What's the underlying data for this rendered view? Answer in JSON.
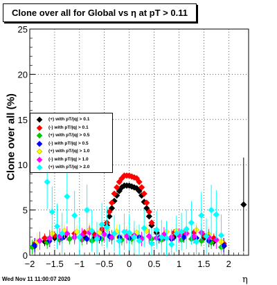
{
  "title": "Clone  over all for Global vs  η at pT > 0.11",
  "ylabel": "Clone  over all (%)",
  "xlabel": "η",
  "timestamp": "Wed Nov 11 11:00:07 2020",
  "chart_data": {
    "type": "scatter",
    "title": "Clone  over all for Global vs  η at pT > 0.11",
    "xlabel": "η",
    "ylabel": "Clone  over all (%)",
    "xlim": [
      -2.0,
      2.4
    ],
    "ylim": [
      0,
      25
    ],
    "x_ticks": [
      "−2",
      "−1.5",
      "−1",
      "−0.5",
      "0",
      "0.5",
      "1",
      "1.5",
      "2"
    ],
    "y_ticks": [
      "0",
      "5",
      "10",
      "15",
      "20",
      "25"
    ],
    "grid": true,
    "legend_position": "middle-left",
    "series": [
      {
        "name": "(+) with pT/|q| > 0.1",
        "color": "#000000",
        "x": [
          -1.9,
          -1.7,
          -1.5,
          -1.3,
          -1.1,
          -0.9,
          -0.7,
          -0.55,
          -0.45,
          -0.4,
          -0.35,
          -0.3,
          -0.25,
          -0.2,
          -0.15,
          -0.1,
          -0.05,
          0.0,
          0.05,
          0.1,
          0.15,
          0.2,
          0.25,
          0.3,
          0.35,
          0.4,
          0.45,
          0.55,
          0.7,
          0.9,
          1.1,
          1.3,
          1.5,
          1.7,
          1.9,
          2.3
        ],
        "y": [
          1.0,
          1.5,
          1.9,
          2.1,
          2.0,
          2.0,
          1.9,
          2.6,
          3.3,
          4.3,
          5.2,
          6.0,
          6.6,
          7.1,
          7.5,
          7.7,
          7.7,
          7.7,
          7.6,
          7.5,
          7.4,
          7.1,
          6.6,
          5.9,
          5.2,
          4.3,
          3.3,
          2.5,
          1.9,
          2.0,
          2.0,
          2.0,
          1.9,
          1.5,
          1.0,
          5.6
        ],
        "yerr": [
          0.6,
          0.5,
          0.4,
          0.4,
          0.4,
          0.4,
          0.4,
          0.4,
          0.3,
          0.3,
          0.3,
          0.3,
          0.3,
          0.3,
          0.3,
          0.3,
          0.3,
          0.3,
          0.3,
          0.3,
          0.3,
          0.3,
          0.3,
          0.3,
          0.3,
          0.3,
          0.3,
          0.4,
          0.4,
          0.4,
          0.4,
          0.4,
          0.4,
          0.5,
          0.6,
          5.2
        ]
      },
      {
        "name": "(-) with pT/|q| > 0.1",
        "color": "#ff0000",
        "x": [
          -1.9,
          -1.7,
          -1.5,
          -1.3,
          -1.1,
          -0.9,
          -0.7,
          -0.55,
          -0.45,
          -0.4,
          -0.35,
          -0.3,
          -0.25,
          -0.2,
          -0.15,
          -0.1,
          -0.05,
          0.0,
          0.05,
          0.1,
          0.15,
          0.2,
          0.25,
          0.3,
          0.35,
          0.4,
          0.45,
          0.55,
          0.7,
          0.9,
          1.1,
          1.3,
          1.5,
          1.7,
          1.9
        ],
        "y": [
          1.3,
          1.9,
          2.2,
          2.5,
          2.4,
          2.5,
          2.3,
          2.9,
          3.6,
          4.8,
          5.8,
          6.8,
          7.5,
          8.1,
          8.5,
          8.8,
          8.8,
          8.8,
          8.7,
          8.6,
          8.5,
          8.1,
          7.5,
          6.8,
          5.8,
          4.8,
          3.6,
          2.8,
          2.3,
          2.5,
          2.4,
          2.5,
          2.2,
          1.9,
          1.3
        ],
        "yerr": [
          0.6,
          0.5,
          0.4,
          0.4,
          0.4,
          0.4,
          0.4,
          0.4,
          0.3,
          0.3,
          0.3,
          0.3,
          0.3,
          0.3,
          0.3,
          0.3,
          0.3,
          0.3,
          0.3,
          0.3,
          0.3,
          0.3,
          0.3,
          0.3,
          0.3,
          0.3,
          0.3,
          0.4,
          0.4,
          0.4,
          0.4,
          0.4,
          0.4,
          0.5,
          0.6
        ]
      },
      {
        "name": "(+) with pT/|q| > 0.5",
        "color": "#00cc00",
        "x": [
          -1.95,
          -1.65,
          -1.4,
          -1.2,
          -0.95,
          -0.75,
          -0.55,
          -0.35,
          -0.15,
          0.05,
          0.25,
          0.45,
          0.65,
          0.85,
          1.05,
          1.25,
          1.45,
          1.65,
          1.85
        ],
        "y": [
          0.9,
          1.4,
          1.7,
          1.8,
          1.7,
          1.6,
          1.8,
          1.9,
          1.7,
          1.8,
          1.9,
          1.8,
          1.7,
          1.8,
          1.7,
          1.8,
          1.6,
          1.4,
          0.9
        ],
        "yerr": [
          0.8,
          0.7,
          0.6,
          0.6,
          0.6,
          0.6,
          0.6,
          0.6,
          0.6,
          0.6,
          0.6,
          0.6,
          0.6,
          0.6,
          0.6,
          0.6,
          0.6,
          0.7,
          0.8
        ]
      },
      {
        "name": "(-) with pT/|q| > 0.5",
        "color": "#0000ff",
        "x": [
          -1.9,
          -1.6,
          -1.35,
          -1.1,
          -0.85,
          -0.6,
          -0.4,
          -0.2,
          0.0,
          0.2,
          0.4,
          0.6,
          0.85,
          1.1,
          1.35,
          1.6,
          1.9
        ],
        "y": [
          1.1,
          1.6,
          1.9,
          2.0,
          1.8,
          1.9,
          2.1,
          2.0,
          1.9,
          2.0,
          2.1,
          1.9,
          1.8,
          2.0,
          1.9,
          1.6,
          1.1
        ],
        "yerr": [
          0.8,
          0.7,
          0.6,
          0.6,
          0.6,
          0.6,
          0.6,
          0.6,
          0.6,
          0.6,
          0.6,
          0.6,
          0.6,
          0.6,
          0.6,
          0.7,
          0.8
        ]
      },
      {
        "name": "(+) with pT/|q| > 1.0",
        "color": "#ffff00",
        "x": [
          -1.85,
          -1.55,
          -1.3,
          -1.05,
          -0.8,
          -0.6,
          -0.45,
          -0.25,
          -0.05,
          0.15,
          0.35,
          0.55,
          0.75,
          0.95,
          1.15,
          1.35,
          1.6,
          1.85
        ],
        "y": [
          1.5,
          2.4,
          2.7,
          2.6,
          2.8,
          2.5,
          2.9,
          2.6,
          2.4,
          2.5,
          2.7,
          2.8,
          2.6,
          2.7,
          2.5,
          2.8,
          2.3,
          1.5
        ],
        "yerr": [
          1.0,
          0.9,
          0.8,
          0.8,
          0.8,
          0.8,
          0.8,
          0.8,
          0.8,
          0.8,
          0.8,
          0.8,
          0.8,
          0.8,
          0.8,
          0.8,
          0.9,
          1.0
        ]
      },
      {
        "name": "(-) with pT/|q| > 1.0",
        "color": "#ff00ff",
        "x": [
          -1.8,
          -1.6,
          -1.4,
          -1.25,
          -1.1,
          -0.95,
          -0.8,
          -0.65,
          -0.5,
          -0.35,
          -0.2,
          -0.05,
          0.1,
          0.25,
          0.4,
          0.55,
          0.7,
          0.85,
          1.0,
          1.15,
          1.3,
          1.45,
          1.6,
          1.75
        ],
        "y": [
          1.6,
          1.9,
          2.1,
          2.4,
          2.0,
          2.2,
          2.5,
          2.1,
          2.3,
          2.0,
          1.6,
          2.1,
          2.2,
          1.8,
          2.1,
          1.9,
          2.3,
          2.0,
          2.2,
          2.4,
          2.1,
          2.5,
          2.0,
          1.7
        ],
        "yerr": [
          1.0,
          0.9,
          0.9,
          0.8,
          0.8,
          0.8,
          0.8,
          0.8,
          0.8,
          0.8,
          0.8,
          0.8,
          0.8,
          0.8,
          0.8,
          0.8,
          0.8,
          0.8,
          0.8,
          0.8,
          0.8,
          0.9,
          0.9,
          1.0
        ]
      },
      {
        "name": "(+) with pT/|q| > 2.0",
        "color": "#00ffff",
        "x": [
          -1.65,
          -1.55,
          -1.45,
          -1.35,
          -1.25,
          -1.1,
          -1.0,
          -0.85,
          -0.75,
          -0.65,
          -0.55,
          -0.45,
          -0.3,
          -0.2,
          -0.1,
          0.0,
          0.1,
          0.2,
          0.3,
          0.45,
          0.55,
          0.65,
          0.75,
          0.85,
          0.95,
          1.05,
          1.15,
          1.25,
          1.35,
          1.45,
          1.55,
          1.65,
          1.75,
          1.85
        ],
        "y": [
          8.1,
          4.8,
          3.2,
          2.4,
          6.5,
          4.4,
          2.0,
          5.0,
          2.7,
          1.8,
          3.4,
          3.1,
          2.4,
          1.6,
          2.6,
          2.5,
          2.0,
          1.6,
          3.0,
          1.3,
          2.8,
          2.0,
          1.9,
          1.2,
          2.4,
          2.6,
          2.9,
          3.6,
          1.5,
          4.4,
          2.1,
          5.0,
          4.5,
          2.2
        ],
        "yerr": [
          3.0,
          2.8,
          2.5,
          2.3,
          3.0,
          2.7,
          2.2,
          2.8,
          2.3,
          1.9,
          2.4,
          2.3,
          2.0,
          1.8,
          2.0,
          2.0,
          1.8,
          1.8,
          2.1,
          1.7,
          2.1,
          1.9,
          1.9,
          1.7,
          2.0,
          2.1,
          2.2,
          2.4,
          1.8,
          2.6,
          2.0,
          2.8,
          2.7,
          2.3
        ]
      }
    ]
  }
}
